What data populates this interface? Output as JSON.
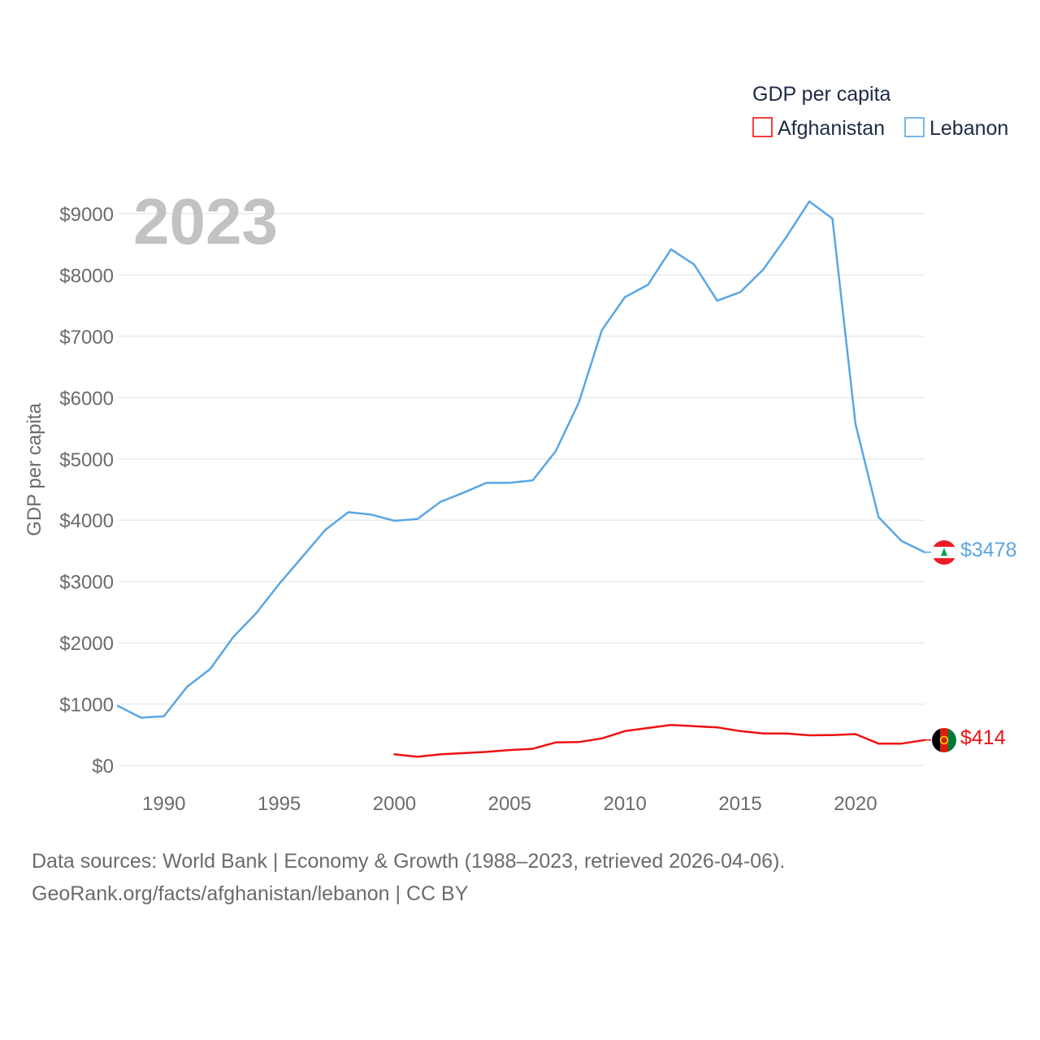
{
  "chart_data": {
    "type": "line",
    "year_label": "2023",
    "ylabel": "GDP per capita",
    "xlabel": "",
    "xlim": [
      1988,
      2023
    ],
    "ylim": [
      0,
      9000
    ],
    "y_ticks": [
      0,
      1000,
      2000,
      3000,
      4000,
      5000,
      6000,
      7000,
      8000,
      9000
    ],
    "y_tick_labels": [
      "$0",
      "$1000",
      "$2000",
      "$3000",
      "$4000",
      "$5000",
      "$6000",
      "$7000",
      "$8000",
      "$9000"
    ],
    "x_ticks": [
      1990,
      1995,
      2000,
      2005,
      2010,
      2015,
      2020
    ],
    "x_tick_labels": [
      "1990",
      "1995",
      "2000",
      "2005",
      "2010",
      "2015",
      "2020"
    ],
    "grid": true,
    "legend": {
      "title": "GDP per capita",
      "position": "top-right",
      "items": [
        "Afghanistan",
        "Lebanon"
      ]
    },
    "series": [
      {
        "name": "Afghanistan",
        "color": "#ee1111",
        "flag_icon": "afghanistan-flag-icon",
        "end_label": "$414",
        "x": [
          2000,
          2001,
          2002,
          2003,
          2004,
          2005,
          2006,
          2007,
          2008,
          2009,
          2010,
          2011,
          2012,
          2013,
          2014,
          2015,
          2016,
          2017,
          2018,
          2019,
          2020,
          2021,
          2022,
          2023
        ],
        "values": [
          180,
          140,
          180,
          200,
          220,
          250,
          270,
          375,
          380,
          440,
          560,
          610,
          660,
          640,
          620,
          560,
          520,
          520,
          490,
          495,
          510,
          355,
          355,
          414
        ]
      },
      {
        "name": "Lebanon",
        "color": "#5aa6e3",
        "flag_icon": "lebanon-flag-icon",
        "end_label": "$3478",
        "x": [
          1988,
          1989,
          1990,
          1991,
          1992,
          1993,
          1994,
          1995,
          1996,
          1997,
          1998,
          1999,
          2000,
          2001,
          2002,
          2003,
          2004,
          2005,
          2006,
          2007,
          2008,
          2009,
          2010,
          2011,
          2012,
          2013,
          2014,
          2015,
          2016,
          2017,
          2018,
          2019,
          2020,
          2021,
          2022,
          2023
        ],
        "values": [
          970,
          780,
          800,
          1280,
          1570,
          2090,
          2480,
          2960,
          3400,
          3840,
          4130,
          4090,
          3990,
          4020,
          4300,
          4450,
          4610,
          4610,
          4650,
          5130,
          5920,
          7100,
          7640,
          7840,
          8420,
          8170,
          7580,
          7720,
          8090,
          8620,
          9200,
          8920,
          5570,
          4050,
          3660,
          3478
        ]
      }
    ],
    "colors": {
      "afghanistan_flag": [
        "#000000",
        "#d32011",
        "#007a36"
      ],
      "lebanon_flag": [
        "#ed1c24",
        "#ffffff",
        "#00a651"
      ]
    }
  },
  "footer": {
    "source_line_1": "Data sources: World Bank | Economy & Growth (1988–2023, retrieved 2026-04-06).",
    "source_line_2": "GeoRank.org/facts/afghanistan/lebanon | CC BY"
  }
}
